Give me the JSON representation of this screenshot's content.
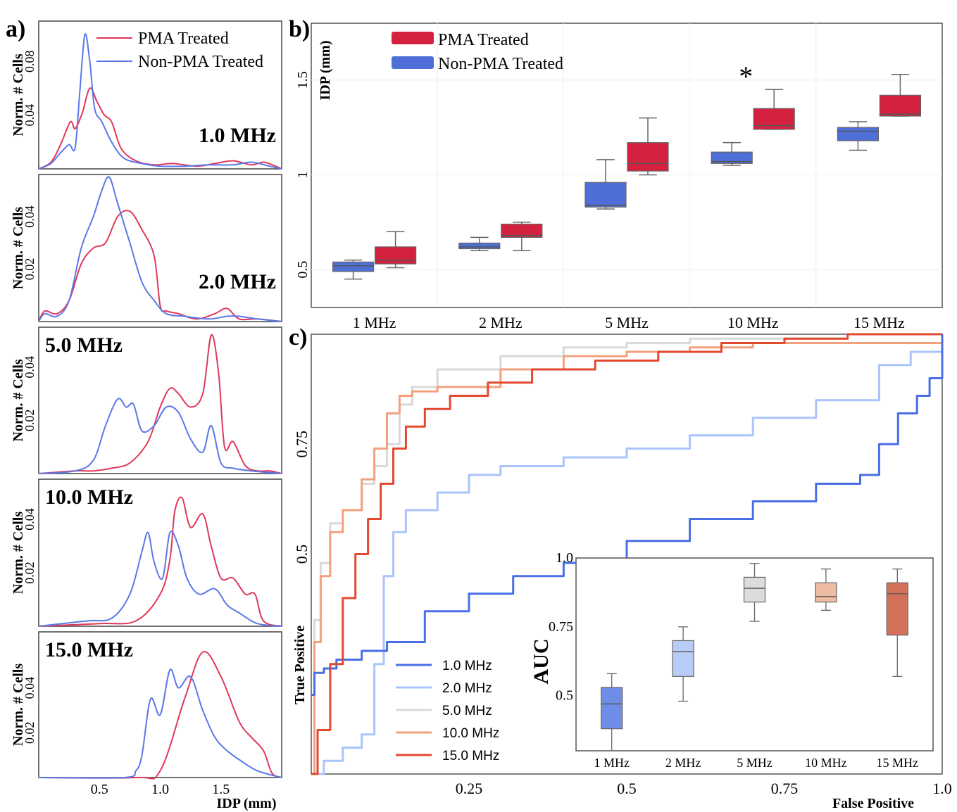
{
  "panels": {
    "a": {
      "panel_label": "a)",
      "ylabel": "Norm. # Cells",
      "xlabel": "IDP (mm)",
      "x_ticks": [
        "0.5",
        "1.0",
        "1.5"
      ],
      "legend": [
        "PMA Treated",
        "Non-PMA Treated"
      ],
      "colors": {
        "pma": "#e0385a",
        "non_pma": "#5a78e8"
      }
    },
    "b": {
      "panel_label": "b)",
      "ylabel": "IDP (mm)",
      "legend": [
        "PMA Treated",
        "Non-PMA Treated"
      ],
      "annotation": "*",
      "colors": {
        "pma": "#d4213f",
        "non_pma": "#4e6fd8"
      }
    },
    "c": {
      "panel_label": "c)",
      "xlabel": "False Positive",
      "ylabel": "True Positive",
      "legend": [
        "1.0 MHz",
        "2.0 MHz",
        "5.0 MHz",
        "10.0 MHz",
        "15.0 MHz"
      ],
      "colors": [
        "#4a6ee6",
        "#a9c4fb",
        "#d9d9d9",
        "#f3a07d",
        "#e2492f"
      ],
      "inset": {
        "ylabel": "AUC"
      }
    }
  },
  "chart_data": [
    {
      "type": "line",
      "panel": "a",
      "title": "",
      "xlabel": "IDP (mm)",
      "ylabel": "Norm. # Cells",
      "xlim": [
        0,
        2.0
      ],
      "subplots": [
        {
          "label": "1.0 MHz",
          "label_pos": "right",
          "ylim": [
            0,
            0.11
          ],
          "y_ticks": [
            "0.04",
            "0.08"
          ],
          "y_tick_values": [
            0.04,
            0.08
          ],
          "series": [
            {
              "name": "PMA Treated",
              "x": [
                0,
                0.1,
                0.18,
                0.26,
                0.3,
                0.36,
                0.42,
                0.48,
                0.54,
                0.6,
                0.68,
                0.8,
                0.95,
                1.1,
                1.3,
                1.45,
                1.6,
                1.75,
                1.85,
                1.95,
                2.0
              ],
              "y": [
                0,
                0.005,
                0.018,
                0.035,
                0.03,
                0.042,
                0.06,
                0.05,
                0.04,
                0.035,
                0.015,
                0.006,
                0.003,
                0.004,
                0.002,
                0.004,
                0.006,
                0.003,
                0.005,
                0.002,
                0
              ]
            },
            {
              "name": "Non-PMA Treated",
              "x": [
                0,
                0.1,
                0.18,
                0.25,
                0.3,
                0.34,
                0.38,
                0.42,
                0.46,
                0.52,
                0.6,
                0.7,
                0.85,
                1.0,
                1.2,
                1.4,
                1.6,
                1.75,
                1.9,
                2.0
              ],
              "y": [
                0,
                0.004,
                0.012,
                0.018,
                0.016,
                0.06,
                0.1,
                0.08,
                0.045,
                0.035,
                0.02,
                0.008,
                0.004,
                0.002,
                0.002,
                0.003,
                0.003,
                0.005,
                0.002,
                0
              ]
            }
          ]
        },
        {
          "label": "2.0 MHz",
          "label_pos": "right",
          "ylim": [
            0,
            0.056
          ],
          "y_ticks": [
            "0.02",
            "0.04"
          ],
          "y_tick_values": [
            0.02,
            0.04
          ],
          "series": [
            {
              "name": "PMA Treated",
              "x": [
                0,
                0.05,
                0.15,
                0.25,
                0.35,
                0.45,
                0.55,
                0.65,
                0.75,
                0.85,
                0.95,
                1.0,
                1.05,
                1.15,
                1.3,
                1.45,
                1.55,
                1.65,
                1.8,
                2.0
              ],
              "y": [
                0,
                0.004,
                0.003,
                0.008,
                0.022,
                0.028,
                0.03,
                0.04,
                0.042,
                0.035,
                0.025,
                0.006,
                0.004,
                0.003,
                0.001,
                0.003,
                0.005,
                0.001,
                0.001,
                0
              ]
            },
            {
              "name": "Non-PMA Treated",
              "x": [
                0,
                0.05,
                0.15,
                0.25,
                0.35,
                0.45,
                0.52,
                0.58,
                0.65,
                0.75,
                0.85,
                0.95,
                1.05,
                1.2,
                1.4,
                1.55,
                1.65,
                1.8,
                2.0
              ],
              "y": [
                0,
                0.003,
                0.002,
                0.008,
                0.028,
                0.04,
                0.05,
                0.055,
                0.045,
                0.03,
                0.015,
                0.008,
                0.003,
                0.002,
                0.001,
                0.002,
                0.002,
                0.001,
                0
              ]
            }
          ]
        },
        {
          "label": "5.0 MHz",
          "label_pos": "left",
          "ylim": [
            0,
            0.055
          ],
          "y_ticks": [
            "0.02",
            "0.04"
          ],
          "y_tick_values": [
            0.02,
            0.04
          ],
          "series": [
            {
              "name": "PMA Treated",
              "x": [
                0,
                0.3,
                0.45,
                0.6,
                0.75,
                0.9,
                1.0,
                1.08,
                1.15,
                1.25,
                1.35,
                1.42,
                1.48,
                1.53,
                1.6,
                1.7,
                1.8,
                1.9,
                2.0
              ],
              "y": [
                0,
                0.001,
                0.001,
                0.002,
                0.004,
                0.012,
                0.025,
                0.032,
                0.03,
                0.025,
                0.03,
                0.052,
                0.038,
                0.01,
                0.012,
                0.003,
                0.001,
                0.001,
                0
              ]
            },
            {
              "name": "Non-PMA Treated",
              "x": [
                0,
                0.3,
                0.45,
                0.55,
                0.65,
                0.72,
                0.78,
                0.85,
                0.95,
                1.05,
                1.15,
                1.25,
                1.35,
                1.42,
                1.5,
                1.6,
                1.75,
                2.0
              ],
              "y": [
                0,
                0.001,
                0.005,
                0.018,
                0.028,
                0.025,
                0.026,
                0.016,
                0.018,
                0.025,
                0.023,
                0.013,
                0.008,
                0.018,
                0.004,
                0.002,
                0.001,
                0
              ]
            }
          ]
        },
        {
          "label": "10.0 MHz",
          "label_pos": "left",
          "ylim": [
            0,
            0.055
          ],
          "y_ticks": [
            "0.02",
            "0.04"
          ],
          "y_tick_values": [
            0.02,
            0.04
          ],
          "series": [
            {
              "name": "PMA Treated",
              "x": [
                0,
                0.5,
                0.8,
                1.0,
                1.08,
                1.12,
                1.18,
                1.25,
                1.35,
                1.42,
                1.5,
                1.6,
                1.7,
                1.78,
                1.85,
                2.0
              ],
              "y": [
                0,
                0.001,
                0.002,
                0.012,
                0.025,
                0.043,
                0.048,
                0.037,
                0.042,
                0.03,
                0.018,
                0.018,
                0.012,
                0.012,
                0.002,
                0
              ]
            },
            {
              "name": "Non-PMA Treated",
              "x": [
                0,
                0.4,
                0.6,
                0.75,
                0.85,
                0.9,
                0.95,
                1.02,
                1.08,
                1.15,
                1.22,
                1.32,
                1.45,
                1.55,
                1.65,
                1.8,
                2.0
              ],
              "y": [
                0,
                0.002,
                0.003,
                0.012,
                0.028,
                0.035,
                0.024,
                0.018,
                0.035,
                0.03,
                0.018,
                0.012,
                0.014,
                0.008,
                0.005,
                0.001,
                0
              ]
            }
          ]
        },
        {
          "label": "15.0 MHz",
          "label_pos": "left",
          "ylim": [
            0,
            0.065
          ],
          "y_ticks": [
            "0.02",
            "0.04"
          ],
          "y_tick_values": [
            0.02,
            0.04
          ],
          "series": [
            {
              "name": "PMA Treated",
              "x": [
                0,
                0.8,
                1.0,
                1.2,
                1.35,
                1.5,
                1.65,
                1.75,
                1.85,
                1.92,
                2.0
              ],
              "y": [
                0,
                0.0,
                0.003,
                0.035,
                0.056,
                0.045,
                0.025,
                0.018,
                0.012,
                0.002,
                0
              ]
            },
            {
              "name": "Non-PMA Treated",
              "x": [
                0,
                0.7,
                0.8,
                0.85,
                0.92,
                1.0,
                1.08,
                1.15,
                1.25,
                1.35,
                1.45,
                1.55,
                1.65,
                1.8,
                2.0
              ],
              "y": [
                0,
                0.0,
                0.003,
                0.01,
                0.035,
                0.028,
                0.048,
                0.04,
                0.045,
                0.03,
                0.018,
                0.012,
                0.008,
                0.003,
                0
              ]
            }
          ]
        }
      ]
    },
    {
      "type": "box",
      "panel": "b",
      "title": "",
      "ylabel": "IDP (mm)",
      "categories": [
        "1 MHz",
        "2 MHz",
        "5 MHz",
        "10 MHz",
        "15 MHz"
      ],
      "ylim": [
        0.3,
        1.8
      ],
      "y_ticks": [
        "0.5",
        "1",
        "1.5"
      ],
      "y_tick_values": [
        0.5,
        1.0,
        1.5
      ],
      "grid": true,
      "legend_position": "top-left",
      "significance": {
        "category": "10 MHz",
        "label": "*"
      },
      "series": [
        {
          "name": "Non-PMA Treated",
          "boxes": [
            {
              "min": 0.45,
              "q1": 0.49,
              "median": 0.52,
              "q3": 0.54,
              "max": 0.55
            },
            {
              "min": 0.6,
              "q1": 0.61,
              "median": 0.62,
              "q3": 0.64,
              "max": 0.67
            },
            {
              "min": 0.82,
              "q1": 0.83,
              "median": 0.84,
              "q3": 0.96,
              "max": 1.08
            },
            {
              "min": 1.05,
              "q1": 1.06,
              "median": 1.07,
              "q3": 1.12,
              "max": 1.17
            },
            {
              "min": 1.13,
              "q1": 1.18,
              "median": 1.23,
              "q3": 1.25,
              "max": 1.28
            }
          ]
        },
        {
          "name": "PMA Treated",
          "boxes": [
            {
              "min": 0.51,
              "q1": 0.53,
              "median": 0.55,
              "q3": 0.62,
              "max": 0.7
            },
            {
              "min": 0.6,
              "q1": 0.67,
              "median": 0.68,
              "q3": 0.74,
              "max": 0.75
            },
            {
              "min": 1.0,
              "q1": 1.02,
              "median": 1.06,
              "q3": 1.17,
              "max": 1.3
            },
            {
              "min": 1.24,
              "q1": 1.24,
              "median": 1.26,
              "q3": 1.35,
              "max": 1.45
            },
            {
              "min": 1.31,
              "q1": 1.31,
              "median": 1.32,
              "q3": 1.42,
              "max": 1.53
            }
          ]
        }
      ]
    },
    {
      "type": "line",
      "panel": "c",
      "title": "",
      "xlabel": "False Positive",
      "ylabel": "True Positive",
      "xlim": [
        0,
        1
      ],
      "ylim": [
        0,
        1
      ],
      "x_ticks": [
        "0.25",
        "0.5",
        "0.75",
        "1.0"
      ],
      "x_tick_values": [
        0.25,
        0.5,
        0.75,
        1.0
      ],
      "y_ticks": [
        "0.5",
        "0.75"
      ],
      "y_tick_values": [
        0.5,
        0.75
      ],
      "legend_position": "bottom-left",
      "series": [
        {
          "name": "1.0 MHz",
          "x": [
            0,
            0.005,
            0.02,
            0.04,
            0.08,
            0.12,
            0.18,
            0.25,
            0.32,
            0.4,
            0.5,
            0.6,
            0.7,
            0.8,
            0.87,
            0.9,
            0.93,
            0.96,
            0.98,
            1.0
          ],
          "y": [
            0.18,
            0.23,
            0.24,
            0.26,
            0.28,
            0.3,
            0.37,
            0.41,
            0.45,
            0.48,
            0.53,
            0.58,
            0.62,
            0.66,
            0.68,
            0.75,
            0.82,
            0.86,
            0.9,
            1.0
          ]
        },
        {
          "name": "2.0 MHz",
          "x": [
            0,
            0.02,
            0.05,
            0.08,
            0.1,
            0.115,
            0.13,
            0.15,
            0.2,
            0.25,
            0.3,
            0.4,
            0.5,
            0.6,
            0.7,
            0.8,
            0.9,
            0.95,
            1.0
          ],
          "y": [
            0,
            0.03,
            0.06,
            0.09,
            0.25,
            0.45,
            0.55,
            0.6,
            0.64,
            0.68,
            0.7,
            0.72,
            0.74,
            0.77,
            0.81,
            0.85,
            0.93,
            0.96,
            1.0
          ]
        },
        {
          "name": "5.0 MHz",
          "x": [
            0,
            0.005,
            0.015,
            0.03,
            0.05,
            0.08,
            0.1,
            0.12,
            0.14,
            0.16,
            0.2,
            0.3,
            0.4,
            0.5,
            0.6,
            0.7,
            0.85,
            1.0
          ],
          "y": [
            0,
            0.35,
            0.48,
            0.57,
            0.6,
            0.66,
            0.7,
            0.75,
            0.84,
            0.88,
            0.92,
            0.95,
            0.97,
            0.98,
            0.99,
            0.99,
            1.0,
            1.0
          ]
        },
        {
          "name": "10.0 MHz",
          "x": [
            0,
            0.005,
            0.015,
            0.03,
            0.05,
            0.08,
            0.1,
            0.12,
            0.14,
            0.16,
            0.2,
            0.3,
            0.4,
            0.5,
            0.6,
            0.7,
            0.85,
            1.0
          ],
          "y": [
            0,
            0.3,
            0.45,
            0.55,
            0.6,
            0.67,
            0.74,
            0.82,
            0.86,
            0.87,
            0.88,
            0.92,
            0.95,
            0.96,
            0.97,
            0.98,
            0.98,
            1.0
          ]
        },
        {
          "name": "15.0 MHz",
          "x": [
            0,
            0.01,
            0.03,
            0.05,
            0.07,
            0.09,
            0.11,
            0.13,
            0.15,
            0.18,
            0.22,
            0.28,
            0.35,
            0.45,
            0.55,
            0.65,
            0.75,
            0.85,
            1.0
          ],
          "y": [
            0,
            0.1,
            0.25,
            0.4,
            0.5,
            0.58,
            0.66,
            0.74,
            0.79,
            0.83,
            0.86,
            0.89,
            0.92,
            0.94,
            0.96,
            0.98,
            0.99,
            1.0,
            1.0
          ]
        }
      ]
    },
    {
      "type": "box",
      "panel": "c-inset",
      "title": "",
      "ylabel": "AUC",
      "categories": [
        "1 MHz",
        "2 MHz",
        "5 MHz",
        "10 MHz",
        "15 MHz"
      ],
      "ylim": [
        0.3,
        1.0
      ],
      "y_ticks": [
        "0.5",
        "0.75",
        "1.0"
      ],
      "y_tick_values": [
        0.5,
        0.75,
        1.0
      ],
      "boxes": [
        {
          "min": 0.3,
          "q1": 0.38,
          "median": 0.47,
          "q3": 0.53,
          "max": 0.58
        },
        {
          "min": 0.48,
          "q1": 0.57,
          "median": 0.66,
          "q3": 0.7,
          "max": 0.75
        },
        {
          "min": 0.77,
          "q1": 0.84,
          "median": 0.89,
          "q3": 0.93,
          "max": 0.98
        },
        {
          "min": 0.81,
          "q1": 0.84,
          "median": 0.86,
          "q3": 0.91,
          "max": 0.96
        },
        {
          "min": 0.57,
          "q1": 0.72,
          "median": 0.87,
          "q3": 0.91,
          "max": 0.96
        }
      ]
    }
  ]
}
